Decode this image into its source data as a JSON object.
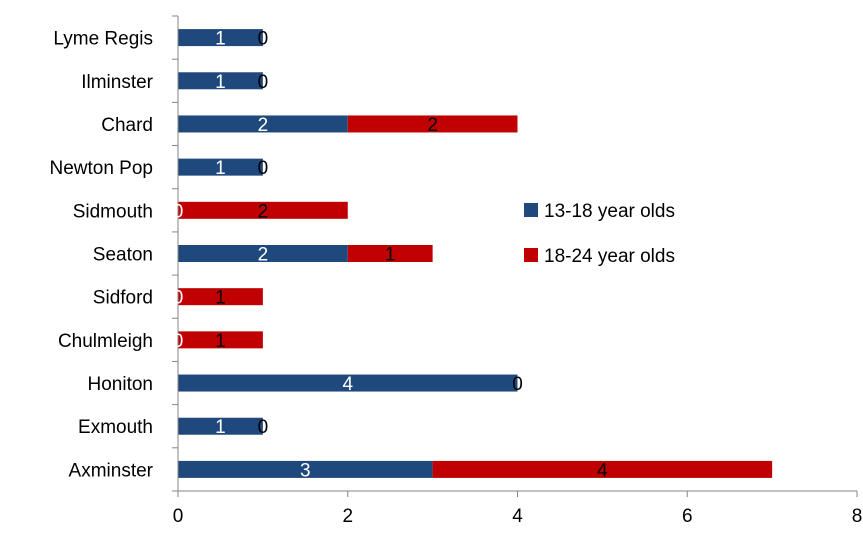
{
  "chart_data": {
    "type": "bar",
    "orientation": "horizontal",
    "stacked": true,
    "categories": [
      "Axminster",
      "Exmouth",
      "Honiton",
      "Chulmleigh",
      "Sidford",
      "Seaton",
      "Sidmouth",
      "Newton Pop",
      "Chard",
      "Ilminster",
      "Lyme Regis"
    ],
    "series": [
      {
        "name": "13-18 year olds",
        "color": "#1F497D",
        "label_color": "#FFFFFF",
        "values": [
          3,
          1,
          4,
          0,
          0,
          2,
          0,
          1,
          2,
          1,
          1
        ]
      },
      {
        "name": "18-24 year olds",
        "color": "#C00000",
        "label_color": "#000000",
        "values": [
          4,
          0,
          0,
          1,
          1,
          1,
          2,
          0,
          2,
          0,
          0
        ]
      }
    ],
    "xlim": [
      0,
      8
    ],
    "xticks": [
      "0",
      "2",
      "4",
      "6",
      "8"
    ],
    "grid": false,
    "legend_position": "right"
  }
}
